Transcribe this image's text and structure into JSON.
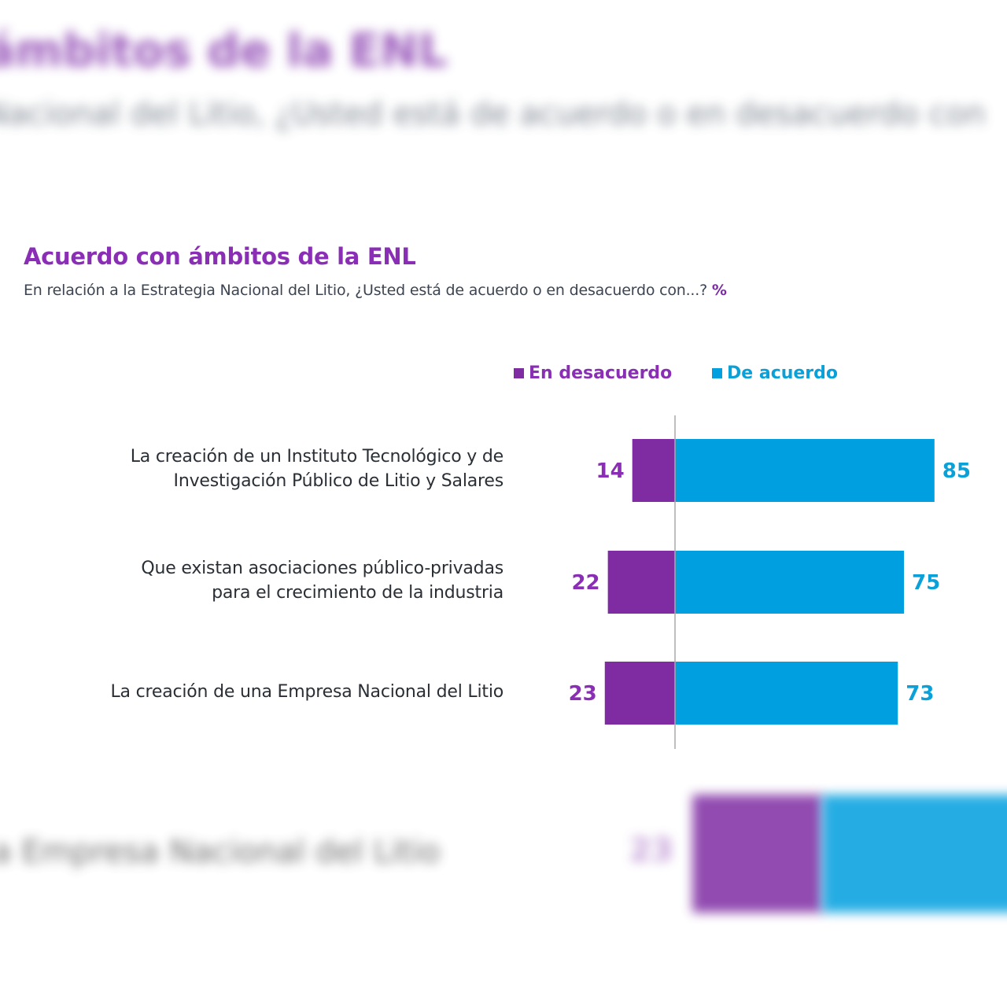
{
  "background": {
    "title_fragment": "ámbitos de la ENL",
    "subtitle_fragment": "Nacional del Litio, ¿Usted está de acuerdo o en desacuerdo con",
    "label_fragment": "a Empresa Nacional del Litio",
    "value_fragment": "23"
  },
  "chart_data": {
    "type": "bar",
    "orientation": "horizontal-diverging",
    "title": "Acuerdo con ámbitos de la ENL",
    "subtitle": "En relación a la Estrategia Nacional del Litio, ¿Usted está de acuerdo o en desacuerdo con...?",
    "unit": "%",
    "legend_placement": "top-right",
    "categories": [
      [
        "La creación de un Instituto Tecnológico y de",
        "Investigación Público de Litio y Salares"
      ],
      [
        "Que existan asociaciones público-privadas",
        "para el crecimiento de la industria"
      ],
      [
        "La creación de una Empresa Nacional del Litio"
      ]
    ],
    "series": [
      {
        "name": "En desacuerdo",
        "color": "#7f2ca3",
        "values": [
          14,
          22,
          23
        ]
      },
      {
        "name": "De acuerdo",
        "color": "#009fdf",
        "values": [
          85,
          75,
          73
        ]
      }
    ],
    "label_colors": {
      "desacuerdo": "#8a2fb5",
      "acuerdo": "#0aa0d8"
    },
    "grid": false
  }
}
